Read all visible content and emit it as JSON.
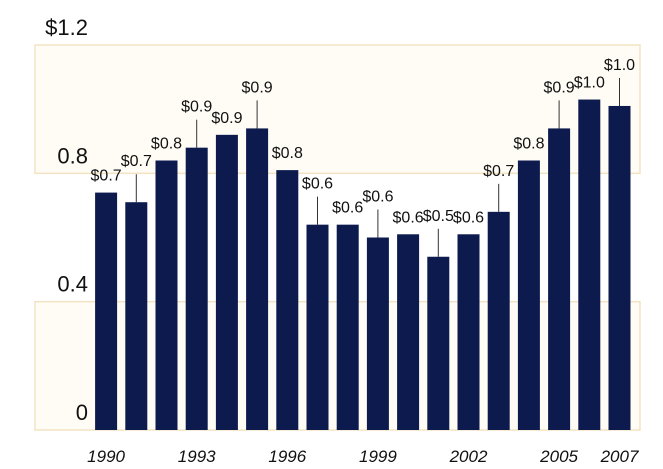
{
  "chart_data": {
    "type": "bar",
    "categories": [
      "1990",
      null,
      null,
      "1993",
      null,
      null,
      "1996",
      null,
      null,
      "1999",
      null,
      null,
      "2002",
      null,
      null,
      "2005",
      null,
      "2007"
    ],
    "values": [
      0.74,
      0.71,
      0.84,
      0.88,
      0.92,
      0.94,
      0.81,
      0.64,
      0.64,
      0.6,
      0.61,
      0.54,
      0.61,
      0.68,
      0.84,
      0.94,
      1.03,
      1.01
    ],
    "value_labels": [
      "$0.7",
      "$0.7",
      "$0.8",
      "$0.9",
      "$0.9",
      "$0.9",
      "$0.8",
      "$0.6",
      "$0.6",
      "$0.6",
      "$0.6",
      "$0.5",
      "$0.6",
      "$0.7",
      "$0.8",
      "$0.9",
      "$1.0",
      "$1.0"
    ],
    "color": "#0c1a4e",
    "ylim": [
      0,
      1.2
    ],
    "yticks": [
      0,
      0.4,
      0.8,
      {
        "value": 1.2,
        "label": "$1.2"
      }
    ]
  }
}
